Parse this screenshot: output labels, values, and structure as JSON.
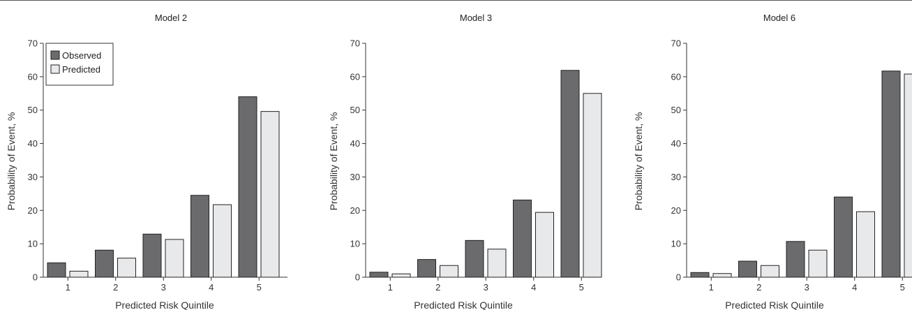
{
  "colors": {
    "observed": "#6b6b6d",
    "predicted": "#e8e9eb"
  },
  "legend": {
    "observed": "Observed",
    "predicted": "Predicted"
  },
  "chart_data": [
    {
      "type": "bar",
      "title": "Model 2",
      "xlabel": "Predicted Risk Quintile",
      "ylabel": "Probability of Event, %",
      "ylim": [
        0,
        70
      ],
      "yticks": [
        "0",
        "10",
        "20",
        "30",
        "40",
        "50",
        "60",
        "70"
      ],
      "categories": [
        "1",
        "2",
        "3",
        "4",
        "5"
      ],
      "series": [
        {
          "name": "Observed",
          "values": [
            4.3,
            8.1,
            12.9,
            24.5,
            54.0
          ]
        },
        {
          "name": "Predicted",
          "values": [
            1.8,
            5.7,
            11.3,
            21.7,
            49.6
          ]
        }
      ],
      "legend_position": "top-left",
      "grid": false
    },
    {
      "type": "bar",
      "title": "Model 3",
      "xlabel": "Predicted Risk Quintile",
      "ylabel": "Probability of Event, %",
      "ylim": [
        0,
        70
      ],
      "yticks": [
        "0",
        "10",
        "20",
        "30",
        "40",
        "50",
        "60",
        "70"
      ],
      "categories": [
        "1",
        "2",
        "3",
        "4",
        "5"
      ],
      "series": [
        {
          "values": [
            1.5,
            5.3,
            11.0,
            23.1,
            61.9
          ]
        },
        {
          "values": [
            1.0,
            3.5,
            8.4,
            19.4,
            55.0
          ]
        }
      ],
      "grid": false
    },
    {
      "type": "bar",
      "title": "Model 6",
      "xlabel": "Predicted Risk Quintile",
      "ylabel": "Probability of Event, %",
      "ylim": [
        0,
        70
      ],
      "yticks": [
        "0",
        "10",
        "20",
        "30",
        "40",
        "50",
        "60",
        "70"
      ],
      "categories": [
        "1",
        "2",
        "3",
        "4",
        "5"
      ],
      "series": [
        {
          "values": [
            1.4,
            4.8,
            10.7,
            24.0,
            61.7
          ]
        },
        {
          "values": [
            1.1,
            3.5,
            8.1,
            19.6,
            60.8
          ]
        }
      ],
      "grid": false
    }
  ]
}
